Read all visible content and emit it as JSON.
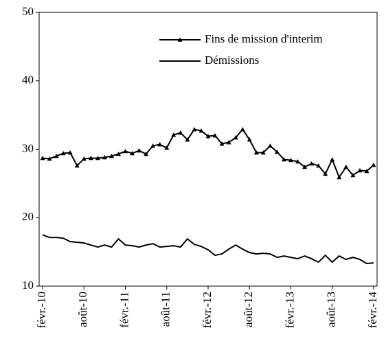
{
  "chart_data": {
    "type": "line",
    "categories": [
      "févr.-10",
      null,
      null,
      null,
      null,
      null,
      "août-10",
      null,
      null,
      null,
      null,
      null,
      "févr.-11",
      null,
      null,
      null,
      null,
      null,
      "août-11",
      null,
      null,
      null,
      null,
      null,
      "févr.-12",
      null,
      null,
      null,
      null,
      null,
      "août-12",
      null,
      null,
      null,
      null,
      null,
      "févr.-13",
      null,
      null,
      null,
      null,
      null,
      "août-13",
      null,
      null,
      null,
      null,
      null,
      "févr.-14"
    ],
    "series": [
      {
        "name": "Fins de mission d'interim",
        "color": "#000000",
        "marker": "triangle",
        "values": [
          28.7,
          28.6,
          29.0,
          29.4,
          29.5,
          27.6,
          28.6,
          28.7,
          28.7,
          28.8,
          29.0,
          29.3,
          29.7,
          29.4,
          29.8,
          29.3,
          30.5,
          30.7,
          30.2,
          32.1,
          32.4,
          31.4,
          32.9,
          32.7,
          31.9,
          32.0,
          30.8,
          31.0,
          31.7,
          32.9,
          31.4,
          29.5,
          29.5,
          30.5,
          29.6,
          28.5,
          28.4,
          28.2,
          27.4,
          27.9,
          27.6,
          26.4,
          28.5,
          25.9,
          27.4,
          26.2,
          26.9,
          26.8,
          27.7
        ]
      },
      {
        "name": "Démissions",
        "color": "#000000",
        "values": [
          17.5,
          17.1,
          17.1,
          17.0,
          16.5,
          16.4,
          16.3,
          16.0,
          15.7,
          16.0,
          15.7,
          16.9,
          16.0,
          15.9,
          15.7,
          16.0,
          16.2,
          15.7,
          15.8,
          15.9,
          15.7,
          16.9,
          16.1,
          15.8,
          15.3,
          14.5,
          14.7,
          15.4,
          16.0,
          15.4,
          14.9,
          14.7,
          14.8,
          14.7,
          14.2,
          14.4,
          14.2,
          14.0,
          14.4,
          14.0,
          13.5,
          14.5,
          13.5,
          14.4,
          13.9,
          14.2,
          13.9,
          13.3,
          13.4
        ]
      }
    ],
    "ylim": [
      10,
      50
    ],
    "yticks": [
      10,
      20,
      30,
      40,
      50
    ],
    "grid": false
  }
}
